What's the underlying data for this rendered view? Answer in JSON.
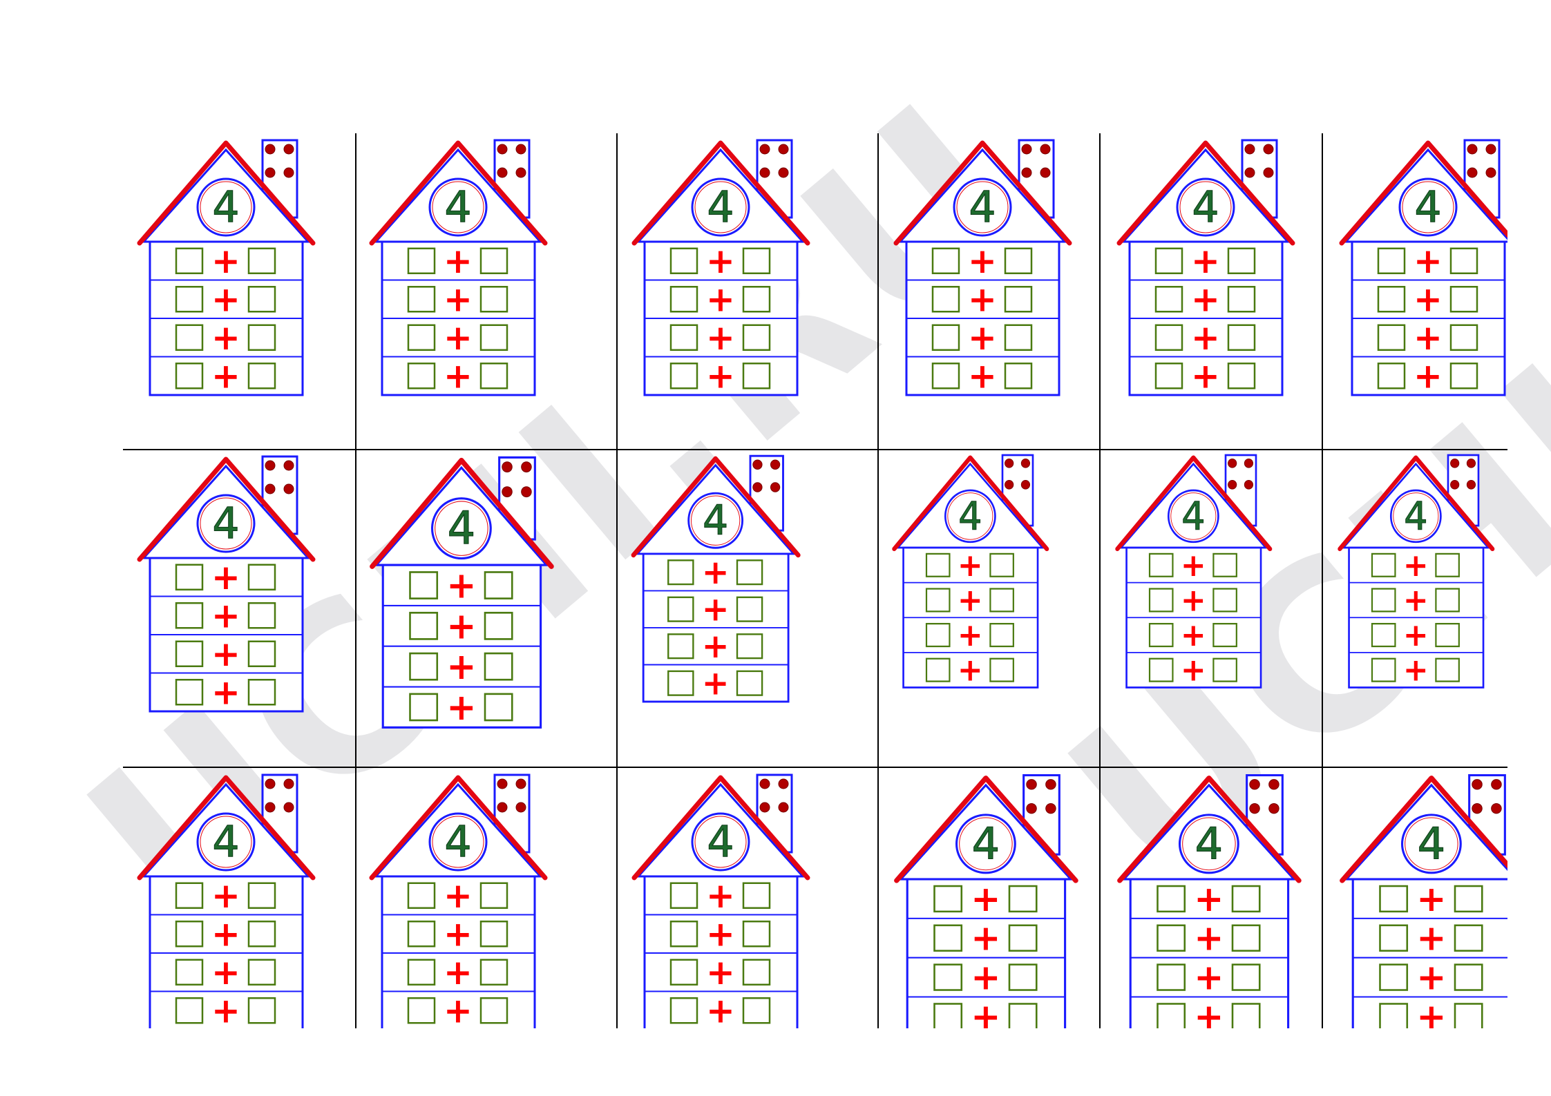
{
  "watermark": {
    "text": "UCHI.RU",
    "color": "#e6e6e8"
  },
  "house": {
    "number": "4",
    "operator": "+",
    "rows_per_house": 4,
    "chimney_dots": 4,
    "colors": {
      "roof": "#e30613",
      "outline": "#1a1aff",
      "boxes": "#4a7a10",
      "plus": "#ff0000",
      "number": "#1e6b2e",
      "dots": "#b00000"
    }
  },
  "grid": {
    "rows": 3,
    "columns": 6
  }
}
